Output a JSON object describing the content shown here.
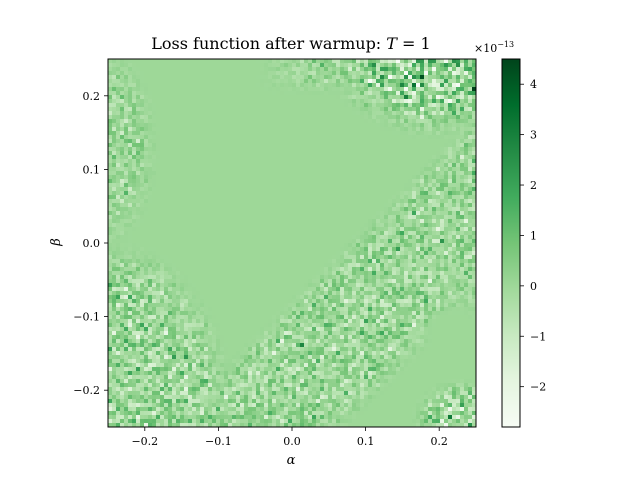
{
  "chart_data": {
    "type": "heatmap",
    "title": "Loss function after warmup: T = 1",
    "title_parts": {
      "prefix": "Loss function after warmup: ",
      "var": "T",
      "suffix": " = 1"
    },
    "xlabel": "α",
    "ylabel": "β",
    "xlim": [
      -0.25,
      0.25
    ],
    "ylim": [
      -0.25,
      0.25
    ],
    "x_ticks": [
      -0.2,
      -0.1,
      0.0,
      0.1,
      0.2
    ],
    "x_tick_labels": [
      "−0.2",
      "−0.1",
      "0.0",
      "0.1",
      "0.2"
    ],
    "y_ticks": [
      -0.2,
      -0.1,
      0.0,
      0.1,
      0.2
    ],
    "y_tick_labels": [
      "−0.2",
      "−0.1",
      "0.0",
      "0.1",
      "0.2"
    ],
    "colormap": "Greens",
    "colorbar": {
      "range": [
        -2.8,
        4.5
      ],
      "ticks": [
        -2,
        -1,
        0,
        1,
        2,
        3,
        4
      ],
      "tick_labels": [
        "−2",
        "−1",
        "0",
        "1",
        "2",
        "3",
        "4"
      ],
      "scale_label": "×10",
      "scale_exponent": "−13"
    },
    "baseline_value": 0.0,
    "noise_regions": [
      {
        "where": "top-right corner",
        "amplitude": 2.5
      },
      {
        "where": "left edge upper",
        "amplitude": 0.9
      },
      {
        "where": "lower-left corner",
        "amplitude": 1.4
      },
      {
        "where": "lower-right diagonal band",
        "amplitude": 1.1
      },
      {
        "where": "right edge middle",
        "amplitude": 0.8
      }
    ],
    "grid": false,
    "legend": "none"
  }
}
